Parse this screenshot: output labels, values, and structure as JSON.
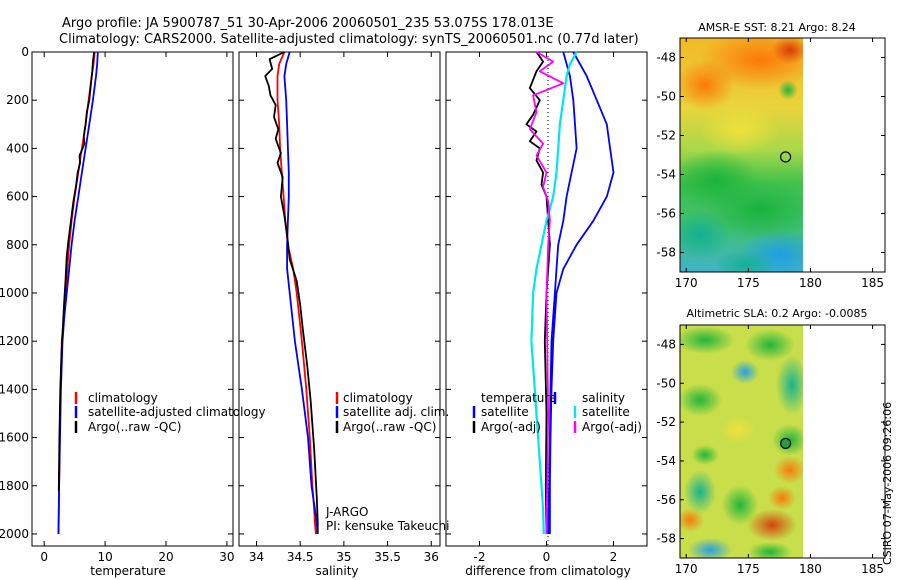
{
  "header": {
    "line1": "Argo profile: JA 5900787_51 30-Apr-2006 20060501_235 53.075S 178.013E",
    "line2": "Climatology: CARS2000. Satellite-adjusted climatology: synTS_20060501.nc (0.77d later)"
  },
  "colors": {
    "climatology": "#ff0000",
    "satellite": "#0000ff",
    "argo": "#000000",
    "sat_diff": "#00e5ee",
    "argo_diff": "#ff00ff"
  },
  "chart_data": [
    {
      "type": "line",
      "id": "temperature",
      "xlabel": "temperature",
      "ylabel": "",
      "xlim": [
        -2,
        31
      ],
      "ylim": [
        2050,
        0
      ],
      "xticks": [
        0,
        10,
        20,
        30
      ],
      "xticklabels": [
        "0",
        "10",
        "20",
        "30"
      ],
      "yticks": [
        0,
        200,
        400,
        600,
        800,
        1000,
        1200,
        1400,
        1600,
        1800,
        2000
      ],
      "yticklabels": [
        "0",
        "200",
        "400",
        "600",
        "800",
        "1000",
        "1200",
        "1400",
        "1600",
        "1800",
        "2000"
      ],
      "legend": [
        "climatology",
        "satellite-adjusted climatology",
        "Argo(..raw -QC)"
      ],
      "series": [
        {
          "name": "climatology",
          "color": "#ff0000",
          "width": 1.8,
          "x": [
            8.3,
            8.1,
            7.8,
            7.3,
            6.8,
            6.2,
            5.6,
            5.0,
            4.5,
            4.1,
            3.8,
            3.5,
            3.2,
            2.9,
            2.7,
            2.55,
            2.45,
            2.4,
            2.35
          ],
          "y": [
            0,
            50,
            100,
            200,
            300,
            400,
            500,
            600,
            700,
            800,
            900,
            1000,
            1100,
            1200,
            1400,
            1600,
            1800,
            1900,
            2000
          ]
        },
        {
          "name": "satellite-adjusted climatology",
          "color": "#0000ff",
          "width": 1.8,
          "x": [
            8.8,
            8.7,
            8.5,
            8.0,
            7.4,
            6.8,
            6.2,
            5.6,
            5.0,
            4.5,
            4.1,
            3.7,
            3.3,
            3.0,
            2.75,
            2.6,
            2.45,
            2.4,
            2.35
          ],
          "y": [
            0,
            50,
            100,
            200,
            300,
            400,
            500,
            600,
            700,
            800,
            900,
            1000,
            1100,
            1200,
            1400,
            1600,
            1800,
            1900,
            2000
          ]
        },
        {
          "name": "Argo(..raw -QC)",
          "color": "#000000",
          "width": 1.8,
          "x": [
            8.2,
            8.0,
            7.9,
            7.6,
            7.4,
            7.0,
            6.8,
            6.5,
            6.6,
            6.3,
            5.8,
            5.9,
            5.5,
            5.2,
            4.8,
            4.4,
            4.0,
            3.7,
            3.5,
            3.25,
            3.05,
            2.85,
            2.65,
            2.5,
            2.4
          ],
          "y": [
            0,
            40,
            80,
            150,
            200,
            250,
            300,
            350,
            380,
            400,
            430,
            460,
            500,
            560,
            620,
            700,
            780,
            850,
            950,
            1050,
            1150,
            1250,
            1400,
            1600,
            1820
          ]
        }
      ]
    },
    {
      "type": "line",
      "id": "salinity",
      "xlabel": "salinity",
      "ylabel": "",
      "xlim": [
        33.8,
        36.1
      ],
      "ylim": [
        2050,
        0
      ],
      "xticks": [
        34,
        34.5,
        35,
        35.5,
        36
      ],
      "xticklabels": [
        "34",
        "34.5",
        "35",
        "35.5",
        "36"
      ],
      "legend": [
        "climatology",
        "satellite adj. clim.",
        "Argo(..raw -QC)"
      ],
      "series": [
        {
          "name": "climatology",
          "color": "#ff0000",
          "width": 1.8,
          "x": [
            34.32,
            34.26,
            34.24,
            34.24,
            34.26,
            34.27,
            34.29,
            34.31,
            34.33,
            34.36,
            34.42,
            34.46,
            34.52,
            34.57,
            34.61,
            34.64,
            34.66,
            34.67,
            34.68
          ],
          "y": [
            0,
            50,
            100,
            200,
            300,
            400,
            500,
            600,
            700,
            800,
            900,
            1000,
            1200,
            1400,
            1600,
            1800,
            1900,
            1960,
            2000
          ]
        },
        {
          "name": "satellite adj. clim.",
          "color": "#0000ff",
          "width": 1.8,
          "x": [
            34.38,
            34.34,
            34.32,
            34.34,
            34.35,
            34.36,
            34.37,
            34.37,
            34.36,
            34.35,
            34.35,
            34.38,
            34.44,
            34.52,
            34.59,
            34.63,
            34.67,
            34.69,
            34.7
          ],
          "y": [
            0,
            50,
            100,
            200,
            300,
            400,
            500,
            600,
            700,
            800,
            900,
            1000,
            1200,
            1400,
            1600,
            1800,
            1900,
            1960,
            2000
          ]
        },
        {
          "name": "Argo(..raw -QC)",
          "color": "#000000",
          "width": 1.8,
          "x": [
            34.32,
            34.15,
            34.18,
            34.1,
            34.14,
            34.16,
            34.22,
            34.2,
            34.25,
            34.22,
            34.28,
            34.24,
            34.3,
            34.28,
            34.32,
            34.35,
            34.38,
            34.46,
            34.5,
            34.53,
            34.58,
            34.62,
            34.66,
            34.69,
            34.7,
            34.7
          ],
          "y": [
            0,
            30,
            70,
            100,
            140,
            180,
            220,
            270,
            320,
            360,
            420,
            460,
            520,
            600,
            680,
            760,
            860,
            950,
            1050,
            1150,
            1300,
            1450,
            1650,
            1850,
            1950,
            2000
          ]
        }
      ],
      "annotations": [
        "J-ARGO",
        "PI: kensuke Takeuchi"
      ]
    },
    {
      "type": "line",
      "id": "difference",
      "xlabel": "difference from climatology",
      "ylabel": "",
      "xlim": [
        -3,
        3
      ],
      "ylim": [
        2050,
        0
      ],
      "xticks": [
        -2,
        0,
        2
      ],
      "xticklabels": [
        "-2",
        "0",
        "2"
      ],
      "legend_headers": [
        "temperature",
        "salinity"
      ],
      "legend": [
        "satellite",
        "Argo(-adj)",
        "satellite",
        "Argo(-adj)"
      ],
      "series": [
        {
          "name": "temperature satellite",
          "color": "#0000ff",
          "width": 1.8,
          "x": [
            0.5,
            0.6,
            0.7,
            0.8,
            0.85,
            0.9,
            0.75,
            0.6,
            0.5,
            0.35,
            0.3,
            0.25,
            0.2,
            0.15,
            0.12,
            0.1,
            0.08,
            0.06,
            0.05
          ],
          "y": [
            0,
            50,
            100,
            200,
            300,
            400,
            500,
            600,
            700,
            800,
            900,
            1000,
            1100,
            1200,
            1400,
            1600,
            1800,
            1900,
            2000
          ]
        },
        {
          "name": "temperature Argo(-adj)",
          "color": "#000000",
          "width": 1.8,
          "x": [
            -0.3,
            -0.1,
            -0.3,
            -0.5,
            -0.2,
            -0.4,
            -0.6,
            -0.3,
            -0.5,
            -0.2,
            -0.3,
            -0.1,
            -0.15,
            0.0,
            0.05,
            0.1,
            0.05,
            0.0,
            -0.05,
            0.0,
            -0.02,
            0.0
          ],
          "y": [
            0,
            40,
            80,
            150,
            200,
            260,
            300,
            330,
            370,
            400,
            450,
            500,
            550,
            600,
            700,
            800,
            900,
            1000,
            1200,
            1500,
            1800,
            2000
          ]
        },
        {
          "name": "salinity satellite",
          "color": "#0000ff",
          "width": 1.8,
          "x": [
            0.8,
            1.0,
            1.2,
            1.5,
            1.8,
            1.9,
            2.0,
            1.8,
            1.4,
            0.9,
            0.5,
            0.3,
            0.2,
            0.15,
            0.12,
            0.1,
            0.1
          ],
          "y": [
            0,
            50,
            100,
            200,
            300,
            400,
            500,
            600,
            700,
            800,
            900,
            1000,
            1200,
            1400,
            1600,
            1800,
            2000
          ]
        },
        {
          "name": "salinity satellite diff",
          "color": "#00e5ee",
          "width": 2.2,
          "x": [
            0.9,
            0.7,
            0.6,
            0.5,
            0.4,
            0.35,
            0.3,
            0.2,
            0.0,
            -0.15,
            -0.3,
            -0.4,
            -0.45,
            -0.35,
            -0.25,
            -0.15,
            -0.1,
            -0.08
          ],
          "y": [
            0,
            50,
            100,
            200,
            300,
            400,
            500,
            600,
            700,
            800,
            900,
            1000,
            1200,
            1400,
            1600,
            1800,
            1900,
            2000
          ]
        },
        {
          "name": "salinity Argo(-adj)",
          "color": "#ff00ff",
          "width": 1.8,
          "x": [
            -0.3,
            0.2,
            -0.2,
            0.5,
            -0.4,
            -0.3,
            -0.5,
            -0.1,
            -0.3,
            0.0,
            -0.1,
            0.05,
            0.1,
            0.05,
            0.0,
            0.05,
            0.0
          ],
          "y": [
            0,
            40,
            80,
            130,
            180,
            250,
            320,
            380,
            430,
            500,
            560,
            620,
            700,
            800,
            1000,
            1500,
            2000
          ]
        }
      ]
    },
    {
      "type": "heatmap",
      "id": "sst-map",
      "title": "AMSR-E SST: 8.21 Argo: 8.24",
      "xlim": [
        169.5,
        186
      ],
      "ylim": [
        -59,
        -47
      ],
      "xticks": [
        170,
        175,
        180,
        185
      ],
      "xticklabels": [
        "170",
        "175",
        "180",
        "185"
      ],
      "yticks": [
        -48,
        -50,
        -52,
        -54,
        -56,
        -58
      ],
      "yticklabels": [
        "-48",
        "-50",
        "-52",
        "-54",
        "-56",
        "-58"
      ],
      "data_extent_lon": [
        169.5,
        180
      ],
      "marker": {
        "lon": 178.0,
        "lat": -53.1
      }
    },
    {
      "type": "heatmap",
      "id": "sla-map",
      "title": "Altimetric SLA: 0.2 Argo: -0.0085",
      "xlim": [
        169.5,
        186
      ],
      "ylim": [
        -59,
        -47
      ],
      "xticks": [
        170,
        175,
        180,
        185
      ],
      "xticklabels": [
        "170",
        "175",
        "180",
        "185"
      ],
      "yticks": [
        -48,
        -50,
        -52,
        -54,
        -56,
        -58
      ],
      "yticklabels": [
        "-48",
        "-50",
        "-52",
        "-54",
        "-56",
        "-58"
      ],
      "data_extent_lon": [
        169.5,
        180
      ],
      "marker": {
        "lon": 178.0,
        "lat": -53.1
      }
    }
  ],
  "footer": {
    "stamp": "CSIRO 07-May-2006 09:26:06"
  }
}
